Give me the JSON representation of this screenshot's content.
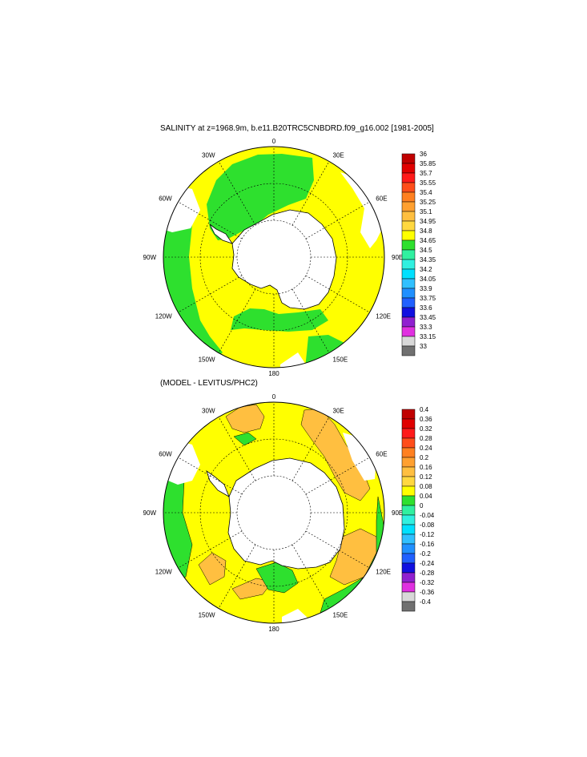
{
  "panel1": {
    "title": "SALINITY at z=1968.9m, b.e11.B20TRC5CNBDRD.f09_g16.002 [1981-2005]",
    "lon_labels": [
      "0",
      "30E",
      "60E",
      "90E",
      "120E",
      "150E",
      "180",
      "150W",
      "120W",
      "90W",
      "60W",
      "30W"
    ],
    "colorbar": {
      "labels": [
        "36",
        "35.85",
        "35.7",
        "35.55",
        "35.4",
        "35.25",
        "35.1",
        "34.95",
        "34.8",
        "34.65",
        "34.5",
        "34.35",
        "34.2",
        "34.05",
        "33.9",
        "33.75",
        "33.6",
        "33.45",
        "33.3",
        "33.15",
        "33"
      ],
      "colors": [
        "#c00000",
        "#e00000",
        "#ff1a1a",
        "#ff4d1a",
        "#ff8020",
        "#ffa030",
        "#ffbf40",
        "#ffd840",
        "#ffff00",
        "#2ee02e",
        "#30f0a0",
        "#30f0e0",
        "#00e0ff",
        "#30c0ff",
        "#2090ff",
        "#2060ff",
        "#1010e0",
        "#9020d0",
        "#e030e0",
        "#d8d8d8",
        "#707070"
      ]
    }
  },
  "panel2": {
    "title": "(MODEL - LEVITUS/PHC2)",
    "lon_labels": [
      "0",
      "30E",
      "60E",
      "90E",
      "120E",
      "150E",
      "180",
      "150W",
      "120W",
      "90W",
      "60W",
      "30W"
    ],
    "colorbar": {
      "labels": [
        "0.4",
        "0.36",
        "0.32",
        "0.28",
        "0.24",
        "0.2",
        "0.16",
        "0.12",
        "0.08",
        "0.04",
        "0",
        "-0.04",
        "-0.08",
        "-0.12",
        "-0.16",
        "-0.2",
        "-0.24",
        "-0.28",
        "-0.32",
        "-0.36",
        "-0.4"
      ],
      "colors": [
        "#c00000",
        "#e00000",
        "#ff1a1a",
        "#ff4d1a",
        "#ff8020",
        "#ffa030",
        "#ffbf40",
        "#ffd840",
        "#ffff00",
        "#2ee02e",
        "#30f0a0",
        "#30f0e0",
        "#00e0ff",
        "#30c0ff",
        "#2090ff",
        "#2060ff",
        "#1010e0",
        "#9020d0",
        "#e030e0",
        "#d8d8d8",
        "#707070"
      ]
    }
  },
  "colors": {
    "yellow": "#ffff00",
    "green": "#2ee02e",
    "orange": "#ffbf40",
    "land": "#ffffff"
  }
}
